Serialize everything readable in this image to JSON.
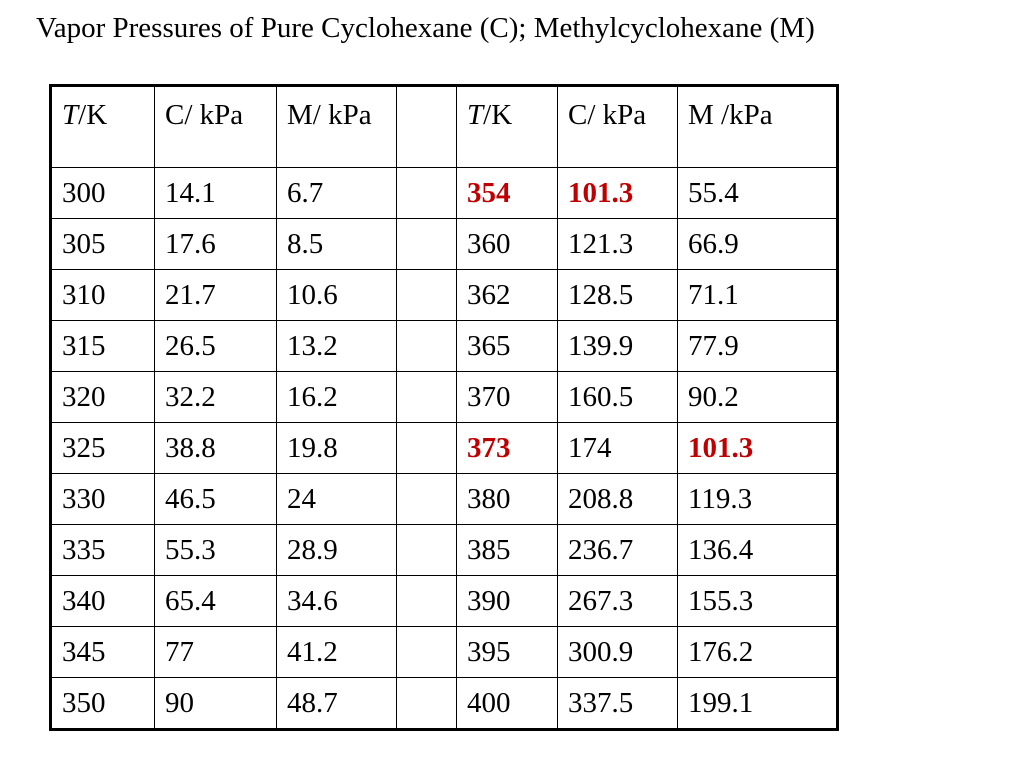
{
  "title": "Vapor Pressures of Pure Cyclohexane (C);  Methylcyclohexane (M)",
  "accent_red": "#c00000",
  "headers": {
    "left": {
      "t_var": "T",
      "t_unit": "/K",
      "c": "C/ kPa",
      "m": "M/ kPa"
    },
    "right": {
      "t_var": "T",
      "t_unit": "/K",
      "c": "C/ kPa",
      "m": "M /kPa"
    }
  },
  "rows": [
    {
      "t1": "300",
      "c1": "14.1",
      "m1": "6.7",
      "t2": "354",
      "c2": "101.3",
      "m2": "55.4"
    },
    {
      "t1": "305",
      "c1": "17.6",
      "m1": "8.5",
      "t2": "360",
      "c2": "121.3",
      "m2": "66.9"
    },
    {
      "t1": "310",
      "c1": "21.7",
      "m1": "10.6",
      "t2": "362",
      "c2": "128.5",
      "m2": "71.1"
    },
    {
      "t1": "315",
      "c1": "26.5",
      "m1": "13.2",
      "t2": "365",
      "c2": "139.9",
      "m2": "77.9"
    },
    {
      "t1": "320",
      "c1": "32.2",
      "m1": "16.2",
      "t2": "370",
      "c2": "160.5",
      "m2": "90.2"
    },
    {
      "t1": "325",
      "c1": "38.8",
      "m1": "19.8",
      "t2": "373",
      "c2": "174",
      "m2": "101.3"
    },
    {
      "t1": "330",
      "c1": "46.5",
      "m1": "24",
      "t2": "380",
      "c2": "208.8",
      "m2": "119.3"
    },
    {
      "t1": "335",
      "c1": "55.3",
      "m1": "28.9",
      "t2": "385",
      "c2": "236.7",
      "m2": "136.4"
    },
    {
      "t1": "340",
      "c1": "65.4",
      "m1": "34.6",
      "t2": "390",
      "c2": "267.3",
      "m2": "155.3"
    },
    {
      "t1": "345",
      "c1": "77",
      "m1": "41.2",
      "t2": "395",
      "c2": "300.9",
      "m2": "176.2"
    },
    {
      "t1": "350",
      "c1": "90",
      "m1": "48.7",
      "t2": "400",
      "c2": "337.5",
      "m2": "199.1"
    }
  ]
}
